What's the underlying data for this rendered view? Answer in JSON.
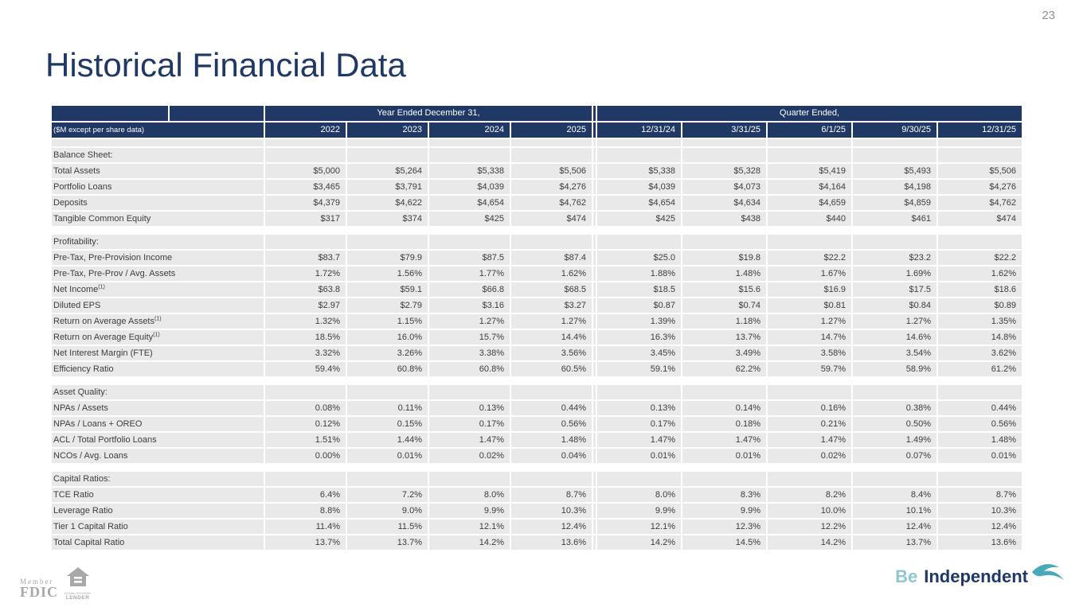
{
  "page": {
    "number": "23",
    "title": "Historical Financial Data"
  },
  "colors": {
    "header_navy": "#1f3864",
    "row_gray": "#e9e9e9",
    "title_navy": "#1f3864",
    "brand_teal": "#8ec6d1",
    "bird_teal": "#4aa9b8",
    "footer_gray": "#a8a8a8"
  },
  "table": {
    "units_label": "($M except per share data)",
    "year_group_label": "Year Ended December 31,",
    "quarter_group_label": "Quarter Ended,",
    "year_columns": [
      "2022",
      "2023",
      "2024",
      "2025"
    ],
    "quarter_columns": [
      "12/31/24",
      "3/31/25",
      "6/1/25",
      "9/30/25",
      "12/31/25"
    ],
    "rows": [
      {
        "type": "gap_gray"
      },
      {
        "type": "section",
        "label": "Balance Sheet:"
      },
      {
        "type": "data",
        "label": "Total Assets",
        "years": [
          "$5,000",
          "$5,264",
          "$5,338",
          "$5,506"
        ],
        "quarters": [
          "$5,338",
          "$5,328",
          "$5,419",
          "$5,493",
          "$5,506"
        ]
      },
      {
        "type": "data",
        "label": "Portfolio Loans",
        "years": [
          "$3,465",
          "$3,791",
          "$4,039",
          "$4,276"
        ],
        "quarters": [
          "$4,039",
          "$4,073",
          "$4,164",
          "$4,198",
          "$4,276"
        ]
      },
      {
        "type": "data",
        "label": "Deposits",
        "years": [
          "$4,379",
          "$4,622",
          "$4,654",
          "$4,762"
        ],
        "quarters": [
          "$4,654",
          "$4,634",
          "$4,659",
          "$4,859",
          "$4,762"
        ]
      },
      {
        "type": "data",
        "label": "Tangible Common Equity",
        "years": [
          "$317",
          "$374",
          "$425",
          "$474"
        ],
        "quarters": [
          "$425",
          "$438",
          "$440",
          "$461",
          "$474"
        ]
      },
      {
        "type": "spacer"
      },
      {
        "type": "section",
        "label": "Profitability:"
      },
      {
        "type": "data",
        "label": "Pre-Tax, Pre-Provision Income",
        "years": [
          "$83.7",
          "$79.9",
          "$87.5",
          "$87.4"
        ],
        "quarters": [
          "$25.0",
          "$19.8",
          "$22.2",
          "$23.2",
          "$22.2"
        ]
      },
      {
        "type": "data",
        "label": "Pre-Tax, Pre-Prov / Avg. Assets",
        "years": [
          "1.72%",
          "1.56%",
          "1.77%",
          "1.62%"
        ],
        "quarters": [
          "1.88%",
          "1.48%",
          "1.67%",
          "1.69%",
          "1.62%"
        ]
      },
      {
        "type": "data",
        "label": "Net Income",
        "footnote": "(1)",
        "years": [
          "$63.8",
          "$59.1",
          "$66.8",
          "$68.5"
        ],
        "quarters": [
          "$18.5",
          "$15.6",
          "$16.9",
          "$17.5",
          "$18.6"
        ]
      },
      {
        "type": "data",
        "label": "Diluted EPS",
        "years": [
          "$2.97",
          "$2.79",
          "$3.16",
          "$3.27"
        ],
        "quarters": [
          "$0.87",
          "$0.74",
          "$0.81",
          "$0.84",
          "$0.89"
        ]
      },
      {
        "type": "data",
        "label": "Return on Average Assets",
        "footnote": "(1)",
        "years": [
          "1.32%",
          "1.15%",
          "1.27%",
          "1.27%"
        ],
        "quarters": [
          "1.39%",
          "1.18%",
          "1.27%",
          "1.27%",
          "1.35%"
        ]
      },
      {
        "type": "data",
        "label": "Return on Average Equity",
        "footnote": "(1)",
        "years": [
          "18.5%",
          "16.0%",
          "15.7%",
          "14.4%"
        ],
        "quarters": [
          "16.3%",
          "13.7%",
          "14.7%",
          "14.6%",
          "14.8%"
        ]
      },
      {
        "type": "data",
        "label": "Net Interest Margin (FTE)",
        "years": [
          "3.32%",
          "3.26%",
          "3.38%",
          "3.56%"
        ],
        "quarters": [
          "3.45%",
          "3.49%",
          "3.58%",
          "3.54%",
          "3.62%"
        ]
      },
      {
        "type": "data",
        "label": "Efficiency Ratio",
        "years": [
          "59.4%",
          "60.8%",
          "60.8%",
          "60.5%"
        ],
        "quarters": [
          "59.1%",
          "62.2%",
          "59.7%",
          "58.9%",
          "61.2%"
        ]
      },
      {
        "type": "spacer"
      },
      {
        "type": "section",
        "label": "Asset Quality:"
      },
      {
        "type": "data",
        "label": "NPAs / Assets",
        "years": [
          "0.08%",
          "0.11%",
          "0.13%",
          "0.44%"
        ],
        "quarters": [
          "0.13%",
          "0.14%",
          "0.16%",
          "0.38%",
          "0.44%"
        ]
      },
      {
        "type": "data",
        "label": "NPAs / Loans + OREO",
        "years": [
          "0.12%",
          "0.15%",
          "0.17%",
          "0.56%"
        ],
        "quarters": [
          "0.17%",
          "0.18%",
          "0.21%",
          "0.50%",
          "0.56%"
        ]
      },
      {
        "type": "data",
        "label": "ACL / Total Portfolio Loans",
        "years": [
          "1.51%",
          "1.44%",
          "1.47%",
          "1.48%"
        ],
        "quarters": [
          "1.47%",
          "1.47%",
          "1.47%",
          "1.49%",
          "1.48%"
        ]
      },
      {
        "type": "data",
        "label": "NCOs / Avg. Loans",
        "years": [
          "0.00%",
          "0.01%",
          "0.02%",
          "0.04%"
        ],
        "quarters": [
          "0.01%",
          "0.01%",
          "0.02%",
          "0.07%",
          "0.01%"
        ]
      },
      {
        "type": "spacer"
      },
      {
        "type": "section",
        "label": "Capital Ratios:"
      },
      {
        "type": "data",
        "label": "TCE Ratio",
        "years": [
          "6.4%",
          "7.2%",
          "8.0%",
          "8.7%"
        ],
        "quarters": [
          "8.0%",
          "8.3%",
          "8.2%",
          "8.4%",
          "8.7%"
        ]
      },
      {
        "type": "data",
        "label": "Leverage Ratio",
        "years": [
          "8.8%",
          "9.0%",
          "9.9%",
          "10.3%"
        ],
        "quarters": [
          "9.9%",
          "9.9%",
          "10.0%",
          "10.1%",
          "10.3%"
        ]
      },
      {
        "type": "data",
        "label": "Tier 1 Capital Ratio",
        "years": [
          "11.4%",
          "11.5%",
          "12.1%",
          "12.4%"
        ],
        "quarters": [
          "12.1%",
          "12.3%",
          "12.2%",
          "12.4%",
          "12.4%"
        ]
      },
      {
        "type": "data",
        "label": "Total Capital Ratio",
        "years": [
          "13.7%",
          "13.7%",
          "14.2%",
          "13.6%"
        ],
        "quarters": [
          "14.2%",
          "14.5%",
          "14.2%",
          "13.7%",
          "13.6%"
        ]
      }
    ]
  },
  "footer": {
    "member_label": "Member",
    "fdic_label": "FDIC",
    "equal_housing_line1": "EQUAL HOUSING",
    "equal_housing_line2": "LENDER",
    "brand_be": "Be",
    "brand_independent": "Independent"
  }
}
